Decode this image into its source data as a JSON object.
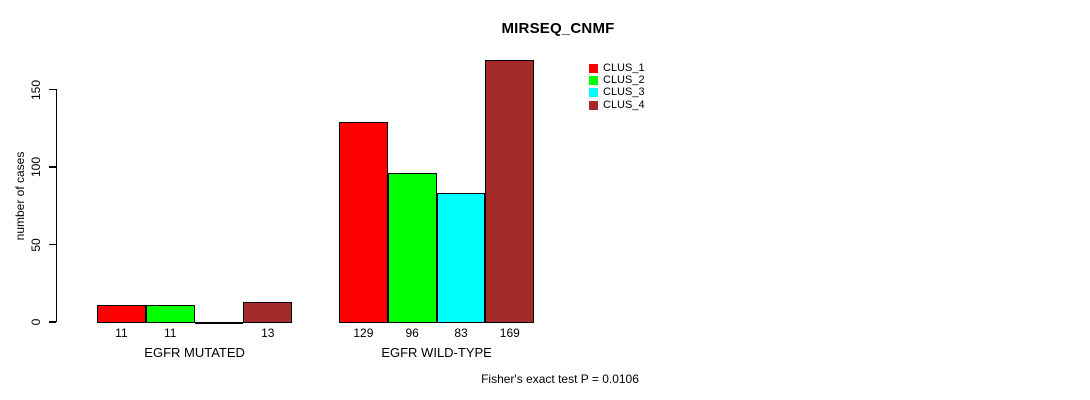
{
  "header": {
    "title": "MIRSEQ_CNMF"
  },
  "y_axis": {
    "label": "number of cases"
  },
  "footer": {
    "note": "Fisher's exact test P = 0.0106"
  },
  "chart_data": {
    "type": "bar",
    "title": "MIRSEQ_CNMF",
    "xlabel": "",
    "ylabel": "number of cases",
    "ylim": [
      0,
      175
    ],
    "yticks": [
      0,
      50,
      100,
      150
    ],
    "grid": false,
    "legend_position": "top-right",
    "categories": [
      "EGFR MUTATED",
      "EGFR WILD-TYPE"
    ],
    "series": [
      {
        "name": "CLUS_1",
        "color": "#ff0000",
        "values": [
          11,
          129
        ]
      },
      {
        "name": "CLUS_2",
        "color": "#00ff00",
        "values": [
          11,
          96
        ]
      },
      {
        "name": "CLUS_3",
        "color": "#00ffff",
        "values": [
          0,
          83
        ]
      },
      {
        "name": "CLUS_4",
        "color": "#a52a2a",
        "values": [
          13,
          169
        ]
      }
    ],
    "bar_value_labels": {
      "shown": true,
      "zero_values_unlabeled": true
    },
    "annotation": "Fisher's exact test P = 0.0106"
  }
}
